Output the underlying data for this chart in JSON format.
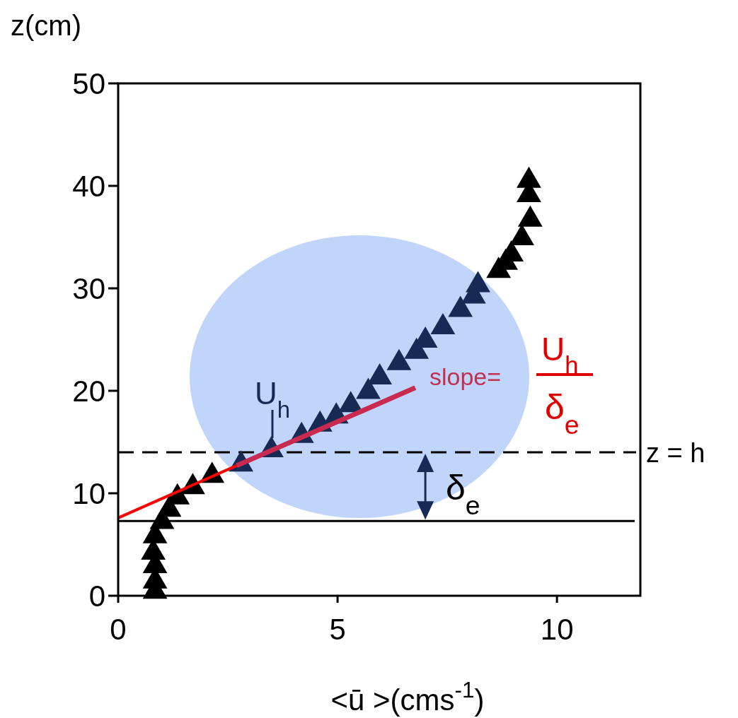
{
  "chart_data": {
    "type": "scatter",
    "xlabel": "<ū >(cms$^{-1}$)",
    "ylabel": "z(cm)",
    "xlim": [
      0,
      11.9
    ],
    "ylim": [
      0,
      50
    ],
    "xticks": [
      0,
      5,
      10
    ],
    "yticks": [
      0,
      10,
      20,
      30,
      40,
      50
    ],
    "grid": false,
    "series": [
      {
        "marker": "triangle",
        "x": [
          0.84,
          0.84,
          0.84,
          0.8,
          0.84,
          1.0,
          1.16,
          1.35,
          1.7,
          2.14,
          2.8,
          3.49,
          4.18,
          4.6,
          4.97,
          5.3,
          5.7,
          5.96,
          6.4,
          6.8,
          7.0,
          7.4,
          7.8,
          8.1,
          8.2,
          8.67,
          8.83,
          8.96,
          9.2,
          9.39,
          9.36,
          9.36
        ],
        "values": [
          0.5,
          1.5,
          3.0,
          4.3,
          5.9,
          7.3,
          8.5,
          9.7,
          10.7,
          11.8,
          12.9,
          14.3,
          15.7,
          16.8,
          17.6,
          18.7,
          20.0,
          21.4,
          22.8,
          23.9,
          25.0,
          26.3,
          28.0,
          29.3,
          30.4,
          31.8,
          32.6,
          33.4,
          35.0,
          36.8,
          39.2,
          40.6
        ],
        "colors": [
          "#000000",
          "#000000",
          "#000000",
          "#000000",
          "#000000",
          "#000000",
          "#000000",
          "#000000",
          "#000000",
          "#000000",
          "#172a55",
          "#172a55",
          "#172a55",
          "#172a55",
          "#172a55",
          "#172a55",
          "#172a55",
          "#172a55",
          "#172a55",
          "#172a55",
          "#172a55",
          "#172a55",
          "#172a55",
          "#172a55",
          "#172a55",
          "#000000",
          "#000000",
          "#000000",
          "#000000",
          "#000000",
          "#000000",
          "#000000"
        ]
      },
      {
        "type": "line",
        "color": "#ff0000",
        "x": [
          0,
          2.7
        ],
        "values": [
          7.6,
          12.7
        ]
      },
      {
        "type": "line",
        "color": "#c82a50",
        "x": [
          2.7,
          6.77
        ],
        "values": [
          12.7,
          20.3
        ]
      }
    ],
    "ref_lines": [
      {
        "axis": "y",
        "value": 14,
        "label": "z = h",
        "line_style": "dashed",
        "color": "#000000"
      },
      {
        "axis": "y",
        "value": 7.3,
        "label": null,
        "line_style": "solid",
        "color": "#000000"
      }
    ],
    "annotations": [
      "U$_{h}$",
      "slope=",
      "U$_{h}$",
      "δ$_{e}$",
      "δ$_{e}$"
    ]
  }
}
